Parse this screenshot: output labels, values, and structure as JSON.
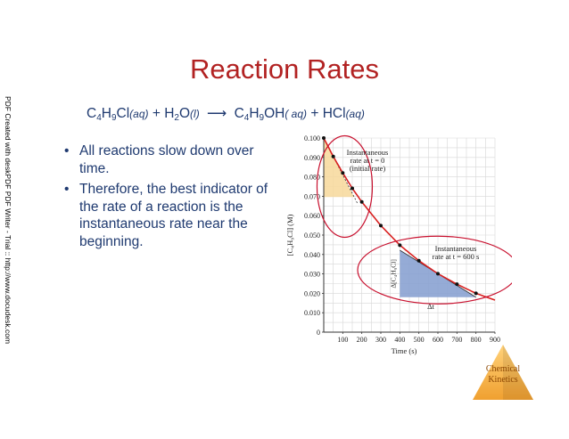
{
  "watermark": "PDF Created with deskPDF PDF Writer - Trial :: http://www.docudesk.com",
  "title": "Reaction Rates",
  "equation": {
    "reactant_formula": [
      "C",
      "4",
      "H",
      "9",
      "Cl"
    ],
    "reactant_state": "(aq)",
    "plus_1": "+",
    "water_formula": [
      "H",
      "2",
      "O"
    ],
    "water_state": "(l)",
    "arrow": "⟶",
    "product_formula": [
      "C",
      "4",
      "H",
      "9",
      "OH"
    ],
    "product_state": "( aq)",
    "plus_2": "+",
    "hcl_formula": "HCl",
    "hcl_state": "(aq)"
  },
  "bullets": [
    "All reactions slow down over time.",
    "Therefore, the best indicator of the rate of a reaction is the instantaneous rate near the beginning."
  ],
  "colors": {
    "title": "#b22222",
    "body_text": "#1f3a70",
    "curve": "#d92020",
    "highlight_circle": "#c8102e",
    "initial_rate_triangle": "#f7d89a",
    "t600_triangle": "#8aa2d2",
    "grid": "#d7d7d7",
    "badge": "#f0a030"
  },
  "chart_data": {
    "type": "line",
    "x": [
      0,
      50,
      100,
      150,
      200,
      300,
      400,
      500,
      600,
      700,
      800,
      900
    ],
    "series": [
      {
        "values": [
          0.1,
          0.0905,
          0.082,
          0.0741,
          0.0671,
          0.0549,
          0.0448,
          0.0368,
          0.0301,
          0.0247,
          0.02,
          0.0165
        ]
      }
    ],
    "xlabel": "Time (s)",
    "ylabel": "[C₄H₉Cl] (M)",
    "xticks": [
      "100",
      "200",
      "300",
      "400",
      "500",
      "600",
      "700",
      "800",
      "900"
    ],
    "yticks": [
      "0",
      "0.010",
      "0.020",
      "0.030",
      "0.040",
      "0.050",
      "0.060",
      "0.070",
      "0.080",
      "0.090",
      "0.100"
    ],
    "xlim": [
      0,
      900
    ],
    "ylim": [
      0,
      0.1
    ],
    "grid": true,
    "annotations": {
      "initial": [
        "Instantaneous",
        "rate at t = 0",
        "(initial rate)"
      ],
      "t600": [
        "Instantaneous",
        "rate at t = 600 s"
      ],
      "delta_y": "Δ[C₄H₉Cl]",
      "delta_t": "Δt"
    }
  },
  "badge": {
    "lines": [
      "Chemical",
      "Kinetics"
    ]
  }
}
